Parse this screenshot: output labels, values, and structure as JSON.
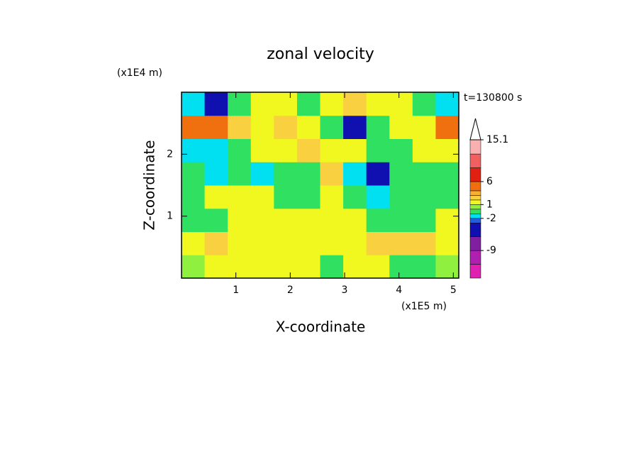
{
  "chart_data": {
    "type": "contour",
    "title": "zonal velocity",
    "xlabel": "X-coordinate",
    "ylabel": "Z-coordinate",
    "x_unit": "(x1E5 m)",
    "y_unit": "(x1E4 m)",
    "time_label": "t=130800 s",
    "xlim": [
      0,
      5.1
    ],
    "ylim": [
      0,
      3
    ],
    "xticks": [
      1,
      2,
      3,
      4,
      5
    ],
    "yticks": [
      1,
      2
    ],
    "field": [
      [
        0.5,
        1.5,
        1.5,
        1.5,
        1.5,
        1.5,
        -0.5,
        1.5,
        1.5,
        -0.5,
        -0.5,
        0.5
      ],
      [
        1.5,
        2.5,
        1.5,
        1.5,
        1.5,
        1.5,
        1.5,
        1.5,
        2.5,
        2.5,
        2.5,
        1.5
      ],
      [
        -0.5,
        -0.5,
        1.5,
        1.5,
        1.5,
        1.5,
        1.5,
        1.5,
        -0.5,
        -0.5,
        -0.5,
        1.5
      ],
      [
        -0.5,
        1.5,
        1.5,
        1.5,
        -0.5,
        -0.5,
        1.5,
        -0.5,
        -1.5,
        -0.5,
        -0.5,
        -0.5
      ],
      [
        -0.5,
        -1.5,
        -0.5,
        -1.5,
        -0.5,
        -0.5,
        2.5,
        -1.5,
        -4,
        -0.5,
        -0.5,
        -0.5
      ],
      [
        -1.5,
        -1.5,
        -0.5,
        1.5,
        1.5,
        2.5,
        1.5,
        1.5,
        -0.5,
        -0.5,
        1.5,
        1.5
      ],
      [
        5,
        5,
        2.5,
        1.5,
        2.5,
        1.5,
        -0.5,
        -4,
        -0.5,
        1.5,
        1.5,
        5
      ],
      [
        -1.5,
        -4,
        -0.5,
        1.5,
        1.5,
        -0.5,
        1.5,
        2.5,
        1.5,
        1.5,
        -0.5,
        -1.5
      ]
    ],
    "levels": [
      -15,
      -12,
      -9,
      -6,
      -3,
      -2,
      -1,
      0,
      1,
      2,
      3,
      4,
      6,
      9,
      12,
      15.1
    ],
    "colors": [
      "#e020b0",
      "#b020b0",
      "#8020a0",
      "#1010b0",
      "#2060e0",
      "#00e0f0",
      "#30e060",
      "#90f040",
      "#f0f820",
      "#f8d040",
      "#f8b030",
      "#f07010",
      "#e02010",
      "#f06060",
      "#f8b0b0"
    ],
    "colorbar_ticks": [
      -9,
      -2,
      1,
      6,
      15.1
    ]
  }
}
